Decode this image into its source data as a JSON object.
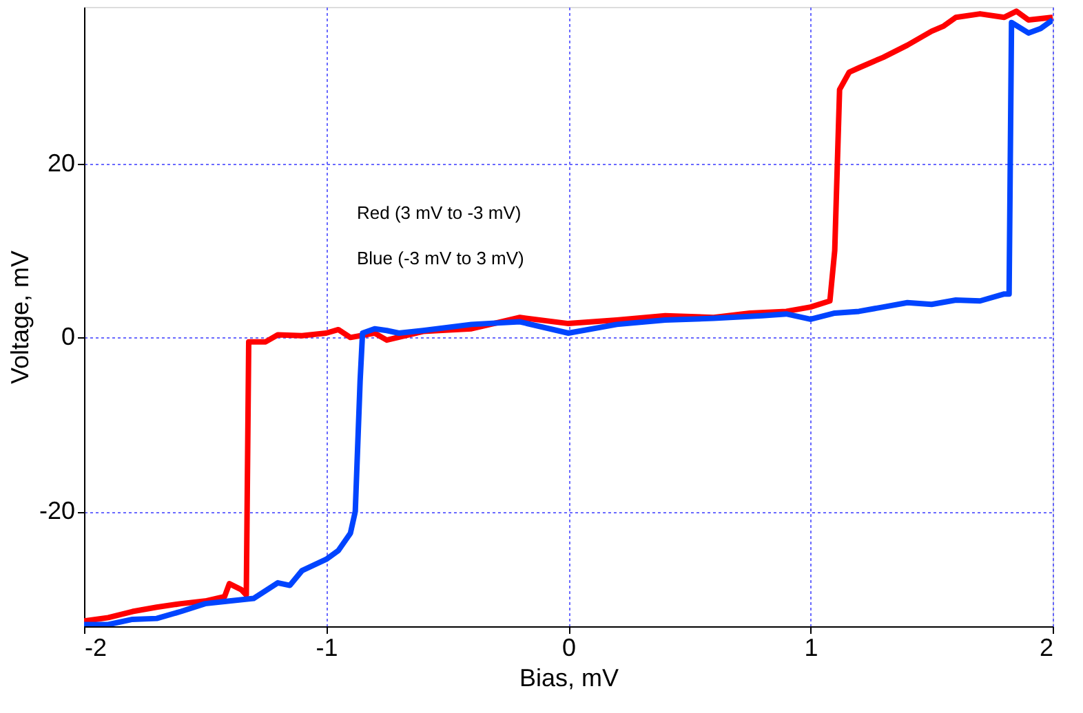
{
  "chart_data": {
    "type": "line",
    "xlabel": "Bias, mV",
    "ylabel": "Voltage, mV",
    "annotations": [
      "Red (3 mV to -3 mV)",
      "Blue (-3 mV to 3 mV)"
    ],
    "xlim": [
      -2,
      2
    ],
    "ylim": [
      -33.2,
      38
    ],
    "xticks": [
      -2,
      -1,
      0,
      1,
      2
    ],
    "yticks": [
      -20,
      0,
      20
    ],
    "grid": true,
    "line_style": "solid",
    "series": [
      {
        "color": "#ff0000",
        "x": [
          -2.0,
          -1.9,
          -1.8,
          -1.7,
          -1.6,
          -1.5,
          -1.42,
          -1.4,
          -1.35,
          -1.33,
          -1.32,
          -1.25,
          -1.2,
          -1.1,
          -1.0,
          -0.95,
          -0.9,
          -0.8,
          -0.75,
          -0.6,
          -0.4,
          -0.2,
          0,
          0.2,
          0.4,
          0.6,
          0.75,
          0.9,
          1.0,
          1.08,
          1.1,
          1.12,
          1.16,
          1.2,
          1.3,
          1.4,
          1.5,
          1.55,
          1.6,
          1.7,
          1.8,
          1.85,
          1.9,
          2.0
        ],
        "values": [
          -32.6,
          -32.2,
          -31.5,
          -31.0,
          -30.6,
          -30.3,
          -29.8,
          -28.3,
          -29.0,
          -29.6,
          -0.5,
          -0.5,
          0.3,
          0.2,
          0.5,
          0.9,
          0,
          0.5,
          -0.3,
          0.7,
          1.0,
          2.3,
          1.6,
          2.0,
          2.5,
          2.3,
          2.8,
          3.0,
          3.5,
          4.2,
          10,
          28.5,
          30.5,
          31.0,
          32.2,
          33.6,
          35.2,
          35.8,
          36.8,
          37.2,
          36.8,
          37.5,
          36.5,
          36.8
        ]
      },
      {
        "color": "#0044ff",
        "x": [
          -2.0,
          -1.9,
          -1.8,
          -1.7,
          -1.6,
          -1.5,
          -1.4,
          -1.3,
          -1.2,
          -1.15,
          -1.1,
          -1.0,
          -0.95,
          -0.9,
          -0.88,
          -0.86,
          -0.85,
          -0.8,
          -0.75,
          -0.7,
          -0.6,
          -0.4,
          -0.2,
          0,
          0.2,
          0.4,
          0.6,
          0.8,
          0.9,
          1.0,
          1.1,
          1.2,
          1.3,
          1.4,
          1.5,
          1.6,
          1.7,
          1.8,
          1.82,
          1.83,
          1.9,
          1.95,
          2.0
        ],
        "values": [
          -33.0,
          -33.0,
          -32.4,
          -32.3,
          -31.5,
          -30.6,
          -30.3,
          -30.0,
          -28.2,
          -28.5,
          -26.8,
          -25.5,
          -24.5,
          -22.5,
          -20.0,
          -5,
          0.5,
          1.0,
          0.8,
          0.5,
          0.8,
          1.5,
          1.8,
          0.5,
          1.5,
          2.0,
          2.2,
          2.5,
          2.7,
          2.1,
          2.8,
          3.0,
          3.5,
          4.0,
          3.8,
          4.3,
          4.2,
          5.0,
          5.0,
          36.2,
          35.0,
          35.5,
          36.5
        ]
      }
    ]
  }
}
